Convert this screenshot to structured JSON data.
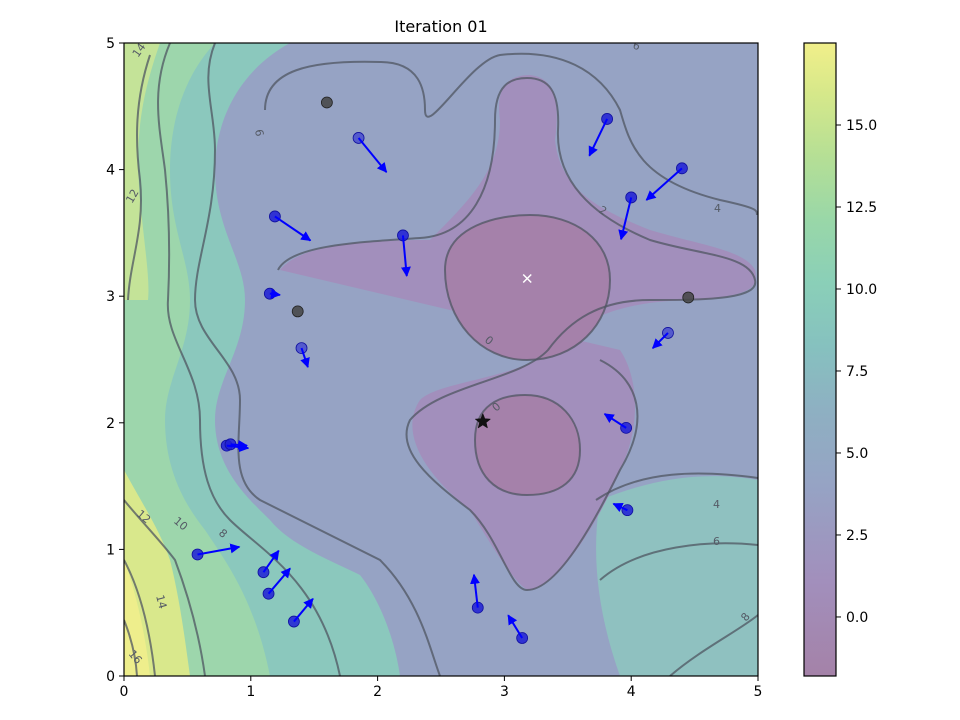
{
  "chart_data": {
    "type": "contour",
    "title": "Iteration 01",
    "xlim": [
      0,
      5
    ],
    "ylim": [
      0,
      5
    ],
    "x_ticks": [
      "0",
      "1",
      "2",
      "3",
      "4",
      "5"
    ],
    "y_ticks": [
      "0",
      "1",
      "2",
      "3",
      "4",
      "5"
    ],
    "xlabel": "",
    "ylabel": "",
    "grid": false,
    "colormap": "viridis (alpha 0.5)",
    "colorbar": {
      "range": [
        -1.8,
        17.5
      ],
      "ticks": [
        "0.0",
        "2.5",
        "5.0",
        "7.5",
        "10.0",
        "12.5",
        "15.0"
      ],
      "tick_values": [
        0,
        2.5,
        5,
        7.5,
        10,
        12.5,
        15
      ]
    },
    "contour_labels": [
      "14",
      "12",
      "6",
      "6",
      "2",
      "4",
      "0",
      "0",
      "4",
      "6",
      "8",
      "12",
      "10",
      "8",
      "14",
      "16"
    ],
    "optimum_marker": {
      "x": 3.18,
      "y": 3.14,
      "symbol": "×",
      "color": "#ffffff"
    },
    "best_marker": {
      "x": 2.83,
      "y": 2.01,
      "symbol": "star",
      "color": "#111111"
    },
    "particles": [
      {
        "x": 1.85,
        "y": 4.25,
        "dx": 0.22,
        "dy": -0.27,
        "faded": true
      },
      {
        "x": 3.81,
        "y": 4.4,
        "dx": -0.14,
        "dy": -0.29,
        "faded": false
      },
      {
        "x": 4.4,
        "y": 4.01,
        "dx": -0.28,
        "dy": -0.25,
        "faded": false
      },
      {
        "x": 4.0,
        "y": 3.78,
        "dx": -0.08,
        "dy": -0.33,
        "faded": false
      },
      {
        "x": 1.19,
        "y": 3.63,
        "dx": 0.28,
        "dy": -0.19,
        "faded": false
      },
      {
        "x": 2.2,
        "y": 3.48,
        "dx": 0.03,
        "dy": -0.32,
        "faded": false
      },
      {
        "x": 1.15,
        "y": 3.02,
        "dx": 0.08,
        "dy": -0.01,
        "faded": false
      },
      {
        "x": 4.29,
        "y": 2.71,
        "dx": -0.12,
        "dy": -0.12,
        "faded": true
      },
      {
        "x": 1.4,
        "y": 2.59,
        "dx": 0.05,
        "dy": -0.15,
        "faded": true
      },
      {
        "x": 3.96,
        "y": 1.96,
        "dx": -0.17,
        "dy": 0.11,
        "faded": false
      },
      {
        "x": 0.81,
        "y": 1.82,
        "dx": 0.17,
        "dy": -0.02,
        "faded": false
      },
      {
        "x": 0.84,
        "y": 1.83,
        "dx": 0.13,
        "dy": -0.01,
        "faded": false
      },
      {
        "x": 3.97,
        "y": 1.31,
        "dx": -0.11,
        "dy": 0.05,
        "faded": false
      },
      {
        "x": 0.58,
        "y": 0.96,
        "dx": 0.33,
        "dy": 0.06,
        "faded": false
      },
      {
        "x": 1.1,
        "y": 0.82,
        "dx": 0.12,
        "dy": 0.17,
        "faded": false
      },
      {
        "x": 1.14,
        "y": 0.65,
        "dx": 0.17,
        "dy": 0.2,
        "faded": false
      },
      {
        "x": 1.34,
        "y": 0.43,
        "dx": 0.15,
        "dy": 0.18,
        "faded": false
      },
      {
        "x": 2.79,
        "y": 0.54,
        "dx": -0.03,
        "dy": 0.26,
        "faded": false
      },
      {
        "x": 3.14,
        "y": 0.3,
        "dx": -0.11,
        "dy": 0.18,
        "faded": false
      }
    ],
    "previous_points": [
      {
        "x": 1.6,
        "y": 4.53
      },
      {
        "x": 1.37,
        "y": 2.88
      },
      {
        "x": 4.45,
        "y": 2.99
      }
    ]
  }
}
